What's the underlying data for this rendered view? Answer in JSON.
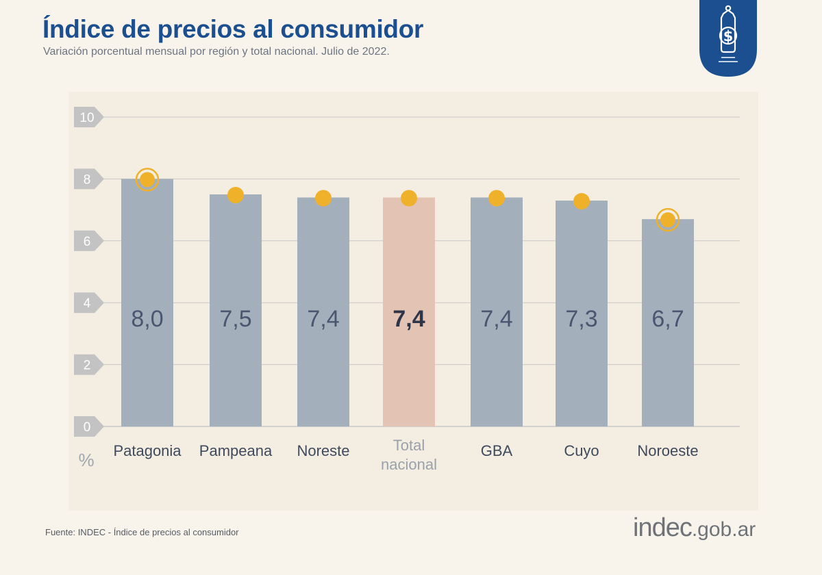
{
  "header": {
    "title": "Índice de precios al consumidor",
    "subtitle": "Variación porcentual mensual por región y total nacional. Julio de 2022."
  },
  "badge": {
    "icon": "price-tag-dollar-icon",
    "symbol": "$",
    "color": "#1b4f8f"
  },
  "colors": {
    "bar": "#a3afbb",
    "highlight_bar": "#e3c3b4",
    "marker": "#efb12a",
    "grid": "#c8c8c8",
    "tick_badge": "#c3c3c3",
    "value_text": "#4a5670",
    "highlight_value_text": "#2e3548"
  },
  "chart_data": {
    "type": "bar",
    "title": "Índice de precios al consumidor",
    "subtitle": "Variación porcentual mensual por región y total nacional. Julio de 2022.",
    "ylabel": "%",
    "ylim": [
      0,
      10
    ],
    "yticks": [
      0,
      2,
      4,
      6,
      8,
      10
    ],
    "grid": true,
    "categories": [
      "Patagonia",
      "Pampeana",
      "Noreste",
      "Total nacional",
      "GBA",
      "Cuyo",
      "Noroeste"
    ],
    "category_lines": [
      [
        "Patagonia"
      ],
      [
        "Pampeana"
      ],
      [
        "Noreste"
      ],
      [
        "Total",
        "nacional"
      ],
      [
        "GBA"
      ],
      [
        "Cuyo"
      ],
      [
        "Noroeste"
      ]
    ],
    "values": [
      8.0,
      7.5,
      7.4,
      7.4,
      7.4,
      7.3,
      6.7
    ],
    "value_labels": [
      "8,0",
      "7,5",
      "7,4",
      "7,4",
      "7,4",
      "7,3",
      "6,7"
    ],
    "highlight": "Total nacional",
    "max_marker": "Patagonia",
    "min_marker": "Noroeste"
  },
  "footer": {
    "source": "Fuente: INDEC - Índice de precios al consumidor",
    "logo_main": "indec",
    "logo_suffix": ".gob.ar"
  }
}
